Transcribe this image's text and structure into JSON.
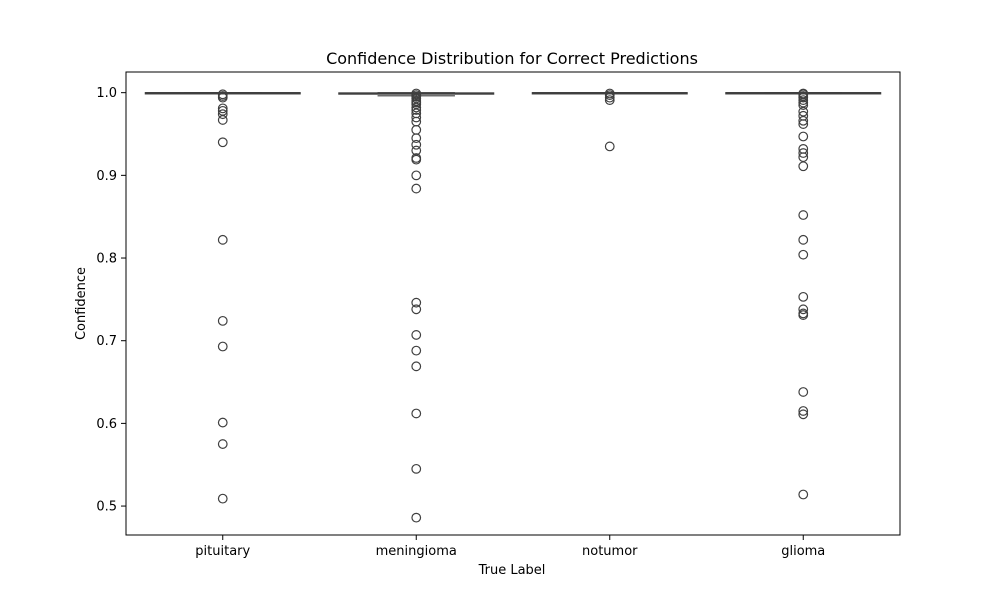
{
  "chart_data": {
    "type": "box",
    "title": "Confidence Distribution for Correct Predictions",
    "xlabel": "True Label",
    "ylabel": "Confidence",
    "categories": [
      "pituitary",
      "meningioma",
      "notumor",
      "glioma"
    ],
    "ylim": [
      0.465,
      1.025
    ],
    "yticks": [
      0.5,
      0.6,
      0.7,
      0.8,
      0.9,
      1.0
    ],
    "ytick_labels": [
      "0.5",
      "0.6",
      "0.7",
      "0.8",
      "0.9",
      "1.0"
    ],
    "grid": false,
    "legend": "none",
    "colors": {
      "box_fill": "#ffffff",
      "box_edge": "#3f3f3f",
      "outlier_edge": "#3f3f3f",
      "axes": "#000000"
    },
    "boxes": [
      {
        "category": "pituitary",
        "q1": 0.9998,
        "median": 0.9999,
        "q3": 1.0,
        "whisker_low": 0.9997,
        "whisker_high": 1.0,
        "outliers": [
          0.998,
          0.996,
          0.994,
          0.981,
          0.978,
          0.974,
          0.967,
          0.94,
          0.822,
          0.724,
          0.693,
          0.601,
          0.575,
          0.509
        ]
      },
      {
        "category": "meningioma",
        "q1": 0.9983,
        "median": 0.9991,
        "q3": 0.9997,
        "whisker_low": 0.9962,
        "whisker_high": 1.0,
        "outliers": [
          0.999,
          0.997,
          0.995,
          0.993,
          0.99,
          0.988,
          0.986,
          0.982,
          0.979,
          0.975,
          0.97,
          0.965,
          0.955,
          0.945,
          0.937,
          0.93,
          0.921,
          0.919,
          0.9,
          0.884,
          0.746,
          0.738,
          0.707,
          0.688,
          0.669,
          0.612,
          0.545,
          0.486
        ]
      },
      {
        "category": "notumor",
        "q1": 0.9998,
        "median": 0.9999,
        "q3": 1.0,
        "whisker_low": 0.9997,
        "whisker_high": 1.0,
        "outliers": [
          0.999,
          0.997,
          0.994,
          0.991,
          0.935
        ]
      },
      {
        "category": "glioma",
        "q1": 0.9996,
        "median": 0.9999,
        "q3": 1.0,
        "whisker_low": 0.999,
        "whisker_high": 1.0,
        "outliers": [
          0.999,
          0.998,
          0.996,
          0.994,
          0.991,
          0.988,
          0.985,
          0.977,
          0.972,
          0.966,
          0.962,
          0.947,
          0.932,
          0.927,
          0.922,
          0.911,
          0.852,
          0.822,
          0.804,
          0.753,
          0.738,
          0.733,
          0.731,
          0.638,
          0.615,
          0.611,
          0.514
        ]
      }
    ]
  }
}
